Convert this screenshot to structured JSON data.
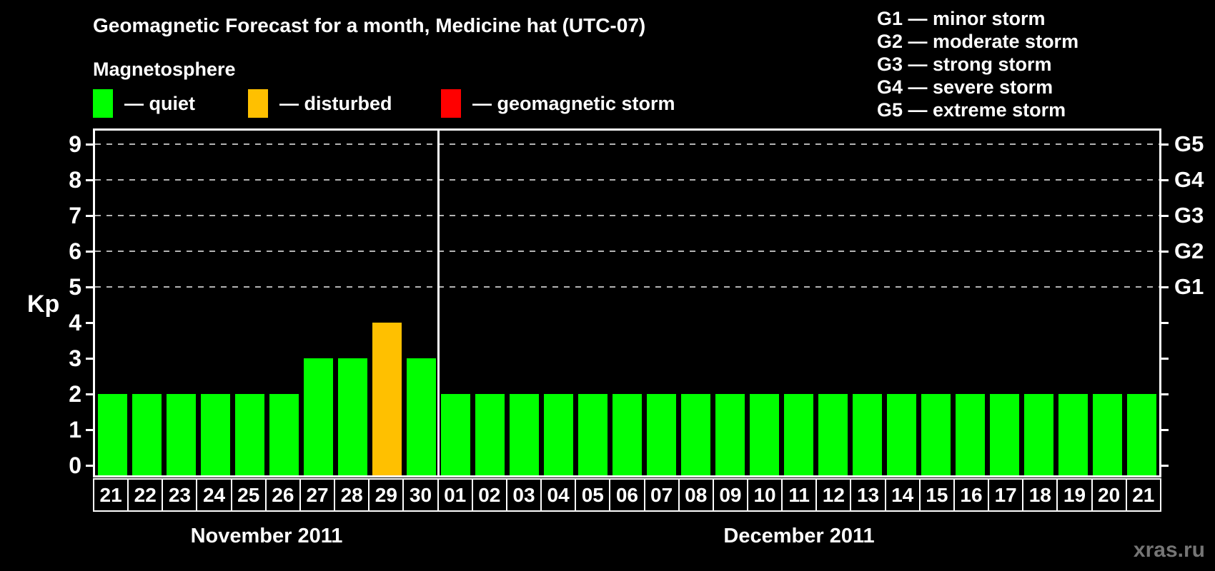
{
  "header": {
    "title": "Geomagnetic Forecast for a month, Medicine hat (UTC-07)",
    "legend_heading": "Magnetosphere",
    "legend_items": [
      {
        "name": "quiet",
        "label": "— quiet",
        "color": "#00ff00"
      },
      {
        "name": "disturbed",
        "label": "— disturbed",
        "color": "#ffc000"
      },
      {
        "name": "storm",
        "label": "— geomagnetic storm",
        "color": "#ff0000"
      }
    ],
    "g_scale_legend": [
      "G1 — minor storm",
      "G2 — moderate storm",
      "G3 — strong storm",
      "G4 — severe storm",
      "G5 — extreme storm"
    ]
  },
  "axes": {
    "y_title": "Kp",
    "y_ticks": [
      0,
      1,
      2,
      3,
      4,
      5,
      6,
      7,
      8,
      9
    ],
    "right_axis_labels": [
      {
        "kp": 5,
        "label": "G1"
      },
      {
        "kp": 6,
        "label": "G2"
      },
      {
        "kp": 7,
        "label": "G3"
      },
      {
        "kp": 8,
        "label": "G4"
      },
      {
        "kp": 9,
        "label": "G5"
      }
    ],
    "gridline_levels": [
      5,
      6,
      7,
      8,
      9
    ]
  },
  "watermark": "xras.ru",
  "chart_data": {
    "type": "bar",
    "title": "Geomagnetic Forecast for a month, Medicine hat (UTC-07)",
    "ylabel": "Kp",
    "ylim": [
      -0.28,
      9.38
    ],
    "grid": "horizontal dashed gridlines at Kp 5,6,7,8,9 only",
    "legend_position": "top",
    "months": [
      {
        "label": "November 2011",
        "days": [
          "21",
          "22",
          "23",
          "24",
          "25",
          "26",
          "27",
          "28",
          "29",
          "30"
        ],
        "kp_values": [
          2,
          2,
          2,
          2,
          2,
          2,
          3,
          3,
          4,
          3
        ]
      },
      {
        "label": "December 2011",
        "days": [
          "01",
          "02",
          "03",
          "04",
          "05",
          "06",
          "07",
          "08",
          "09",
          "10",
          "11",
          "12",
          "13",
          "14",
          "15",
          "16",
          "17",
          "18",
          "19",
          "20",
          "21"
        ],
        "kp_values": [
          2,
          2,
          2,
          2,
          2,
          2,
          2,
          2,
          2,
          2,
          2,
          2,
          2,
          2,
          2,
          2,
          2,
          2,
          2,
          2,
          2
        ]
      }
    ],
    "colors": {
      "quiet": "#00ff00",
      "disturbed": "#ffc000",
      "storm": "#ff0000"
    },
    "bar_color_rule": "Kp <= 3 quiet (green), Kp = 4 disturbed (orange), Kp >= 5 geomagnetic storm (red)"
  }
}
